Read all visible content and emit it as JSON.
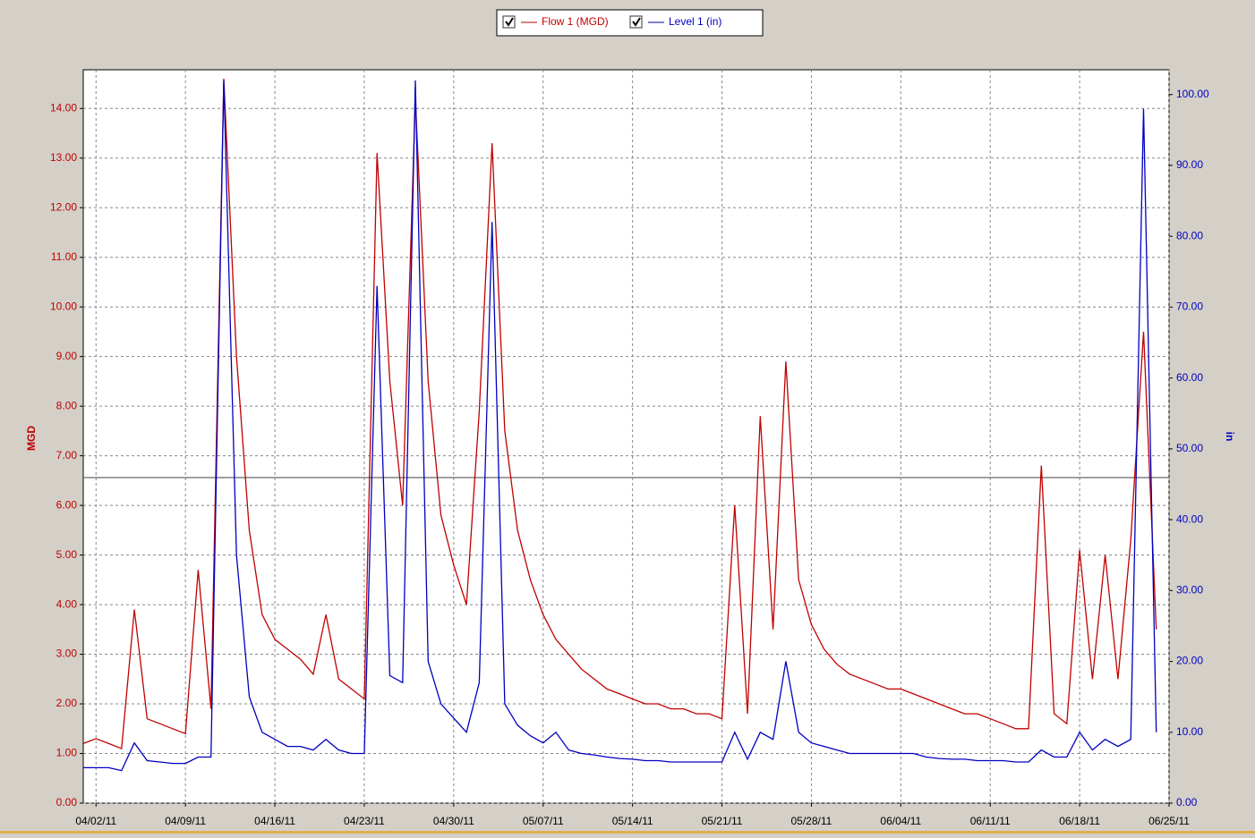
{
  "chart_data": {
    "type": "line",
    "y_label": "MGD",
    "y2_label": "in",
    "x": [
      "2011-04-01",
      "2011-04-02",
      "2011-04-03",
      "2011-04-04",
      "2011-04-05",
      "2011-04-06",
      "2011-04-07",
      "2011-04-08",
      "2011-04-09",
      "2011-04-10",
      "2011-04-11",
      "2011-04-12",
      "2011-04-13",
      "2011-04-14",
      "2011-04-15",
      "2011-04-16",
      "2011-04-17",
      "2011-04-18",
      "2011-04-19",
      "2011-04-20",
      "2011-04-21",
      "2011-04-22",
      "2011-04-23",
      "2011-04-24",
      "2011-04-25",
      "2011-04-26",
      "2011-04-27",
      "2011-04-28",
      "2011-04-29",
      "2011-04-30",
      "2011-05-01",
      "2011-05-02",
      "2011-05-03",
      "2011-05-04",
      "2011-05-05",
      "2011-05-06",
      "2011-05-07",
      "2011-05-08",
      "2011-05-09",
      "2011-05-10",
      "2011-05-11",
      "2011-05-12",
      "2011-05-13",
      "2011-05-14",
      "2011-05-15",
      "2011-05-16",
      "2011-05-17",
      "2011-05-18",
      "2011-05-19",
      "2011-05-20",
      "2011-05-21",
      "2011-05-22",
      "2011-05-23",
      "2011-05-24",
      "2011-05-25",
      "2011-05-26",
      "2011-05-27",
      "2011-05-28",
      "2011-05-29",
      "2011-05-30",
      "2011-05-31",
      "2011-06-01",
      "2011-06-02",
      "2011-06-03",
      "2011-06-04",
      "2011-06-05",
      "2011-06-06",
      "2011-06-07",
      "2011-06-08",
      "2011-06-09",
      "2011-06-10",
      "2011-06-11",
      "2011-06-12",
      "2011-06-13",
      "2011-06-14",
      "2011-06-15",
      "2011-06-16",
      "2011-06-17",
      "2011-06-18",
      "2011-06-19",
      "2011-06-20",
      "2011-06-21",
      "2011-06-22",
      "2011-06-23",
      "2011-06-24"
    ],
    "series": [
      {
        "name": "Flow 1 (MGD)",
        "color": "#c00000",
        "axis": "y",
        "values": [
          1.2,
          1.3,
          1.2,
          1.1,
          3.9,
          1.7,
          1.6,
          1.5,
          1.4,
          4.7,
          1.9,
          14.6,
          9.0,
          5.5,
          3.8,
          3.3,
          3.1,
          2.9,
          2.6,
          3.8,
          2.5,
          2.3,
          2.1,
          13.1,
          8.5,
          6.0,
          14.2,
          8.5,
          5.8,
          4.8,
          4.0,
          7.9,
          13.3,
          7.5,
          5.5,
          4.5,
          3.8,
          3.3,
          3.0,
          2.7,
          2.5,
          2.3,
          2.2,
          2.1,
          2.0,
          2.0,
          1.9,
          1.9,
          1.8,
          1.8,
          1.7,
          6.0,
          1.8,
          7.8,
          3.5,
          8.9,
          4.5,
          3.6,
          3.1,
          2.8,
          2.6,
          2.5,
          2.4,
          2.3,
          2.3,
          2.2,
          2.1,
          2.0,
          1.9,
          1.8,
          1.8,
          1.7,
          1.6,
          1.5,
          1.5,
          6.8,
          1.8,
          1.6,
          5.1,
          2.5,
          5.0,
          2.5,
          5.3,
          9.5,
          3.5
        ]
      },
      {
        "name": "Level 1 (in)",
        "color": "#0000c0",
        "axis": "y2",
        "values": [
          5.0,
          5.0,
          5.0,
          4.6,
          8.5,
          6.0,
          5.8,
          5.6,
          5.6,
          6.5,
          6.5,
          102,
          35,
          15,
          10,
          9.0,
          8.0,
          8.0,
          7.5,
          9.0,
          7.5,
          7.0,
          7.0,
          73,
          18,
          17,
          102,
          20,
          14,
          12,
          10,
          17,
          82,
          14,
          11,
          9.5,
          8.5,
          10,
          7.5,
          7.0,
          6.8,
          6.5,
          6.3,
          6.2,
          6.0,
          6.0,
          5.8,
          5.8,
          5.8,
          5.8,
          5.8,
          10,
          6.2,
          10,
          9,
          20,
          10,
          8.5,
          8,
          7.5,
          7,
          7,
          7,
          7,
          7,
          7,
          6.5,
          6.3,
          6.2,
          6.2,
          6.0,
          6.0,
          6.0,
          5.8,
          5.8,
          7.5,
          6.5,
          6.5,
          10,
          7.5,
          9,
          8,
          9,
          98,
          10
        ]
      }
    ],
    "xlim": [
      "2011-04-01",
      "2011-06-25"
    ],
    "xticks": [
      {
        "value": "2011-04-02",
        "label": "04/02/11"
      },
      {
        "value": "2011-04-09",
        "label": "04/09/11"
      },
      {
        "value": "2011-04-16",
        "label": "04/16/11"
      },
      {
        "value": "2011-04-23",
        "label": "04/23/11"
      },
      {
        "value": "2011-04-30",
        "label": "04/30/11"
      },
      {
        "value": "2011-05-07",
        "label": "05/07/11"
      },
      {
        "value": "2011-05-14",
        "label": "05/14/11"
      },
      {
        "value": "2011-05-21",
        "label": "05/21/11"
      },
      {
        "value": "2011-05-28",
        "label": "05/28/11"
      },
      {
        "value": "2011-06-04",
        "label": "06/04/11"
      },
      {
        "value": "2011-06-11",
        "label": "06/11/11"
      },
      {
        "value": "2011-06-18",
        "label": "06/18/11"
      },
      {
        "value": "2011-06-25",
        "label": "06/25/11"
      }
    ],
    "ylim": [
      0,
      14.78
    ],
    "yticks": [
      {
        "value": 0,
        "label": "0.00"
      },
      {
        "value": 1,
        "label": "1.00"
      },
      {
        "value": 2,
        "label": "2.00"
      },
      {
        "value": 3,
        "label": "3.00"
      },
      {
        "value": 4,
        "label": "4.00"
      },
      {
        "value": 5,
        "label": "5.00"
      },
      {
        "value": 6,
        "label": "6.00"
      },
      {
        "value": 7,
        "label": "7.00"
      },
      {
        "value": 8,
        "label": "8.00"
      },
      {
        "value": 9,
        "label": "9.00"
      },
      {
        "value": 10,
        "label": "10.00"
      },
      {
        "value": 11,
        "label": "11.00"
      },
      {
        "value": 12,
        "label": "12.00"
      },
      {
        "value": 13,
        "label": "13.00"
      },
      {
        "value": 14,
        "label": "14.00"
      }
    ],
    "y2lim": [
      0,
      103.5
    ],
    "y2ticks": [
      {
        "value": 0,
        "label": "0.00"
      },
      {
        "value": 10,
        "label": "10.00"
      },
      {
        "value": 20,
        "label": "20.00"
      },
      {
        "value": 30,
        "label": "30.00"
      },
      {
        "value": 40,
        "label": "40.00"
      },
      {
        "value": 50,
        "label": "50.00"
      },
      {
        "value": 60,
        "label": "60.00"
      },
      {
        "value": 70,
        "label": "70.00"
      },
      {
        "value": 80,
        "label": "80.00"
      },
      {
        "value": 90,
        "label": "90.00"
      },
      {
        "value": 100,
        "label": "100.00"
      }
    ],
    "reference_line": 6.56,
    "grid": true
  }
}
